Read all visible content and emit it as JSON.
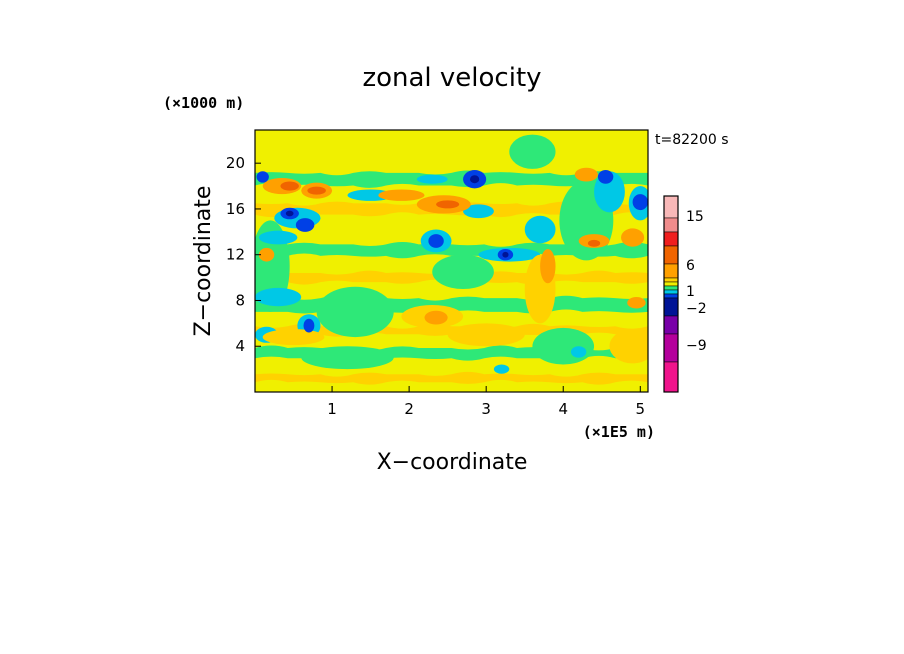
{
  "chart_data": {
    "type": "heatmap",
    "title": "zonal velocity",
    "xlabel": "X−coordinate",
    "ylabel": "Z−coordinate",
    "x_unit": "(×1E5 m)",
    "y_unit": "(×1000 m)",
    "time_label": "t=82200 s",
    "x_ticks": [
      "1",
      "2",
      "3",
      "4",
      "5"
    ],
    "y_ticks": [
      "4",
      "8",
      "12",
      "16",
      "20"
    ],
    "xlim": [
      0,
      5.1
    ],
    "ylim": [
      0,
      22.9
    ],
    "colorbar": {
      "tick_labels": [
        "15",
        "6",
        "1",
        "−2",
        "−9"
      ],
      "tick_values": [
        15,
        6,
        1,
        -2,
        -9
      ],
      "levels": [
        {
          "color": "#f0148c"
        },
        {
          "color": "#b4009c"
        },
        {
          "color": "#7800a8"
        },
        {
          "color": "#001496"
        },
        {
          "color": "#0040e6"
        },
        {
          "color": "#00c8e6"
        },
        {
          "color": "#2ee878"
        },
        {
          "color": "#f0f000"
        },
        {
          "color": "#ffd200"
        },
        {
          "color": "#ffa000"
        },
        {
          "color": "#f06400"
        },
        {
          "color": "#f01e1e"
        },
        {
          "color": "#f08c8c"
        },
        {
          "color": "#f8b8b8"
        }
      ]
    },
    "field_colors": {
      "background": "#f0f000",
      "weak_negative": "#2ee878",
      "moderate_negative": "#00c8e6",
      "strong_negative": "#0040e6",
      "very_strong_negative": "#001496",
      "weak_positive": "#ffd200",
      "moderate_positive": "#ffa000",
      "strong_positive": "#f06400"
    },
    "features": [
      {
        "kind": "band",
        "level": "weak_negative",
        "x": [
          0,
          5.1
        ],
        "z": 18.6,
        "thickness": 1.1
      },
      {
        "kind": "band",
        "level": "weak_negative",
        "x": [
          0,
          5.1
        ],
        "z": 12.4,
        "thickness": 1.0
      },
      {
        "kind": "band",
        "level": "weak_negative",
        "x": [
          0,
          5.1
        ],
        "z": 7.6,
        "thickness": 1.2
      },
      {
        "kind": "band",
        "level": "weak_negative",
        "x": [
          0,
          5.1
        ],
        "z": 3.4,
        "thickness": 0.9
      },
      {
        "kind": "band",
        "level": "weak_positive",
        "x": [
          0,
          5.1
        ],
        "z": 16.0,
        "thickness": 1.0
      },
      {
        "kind": "band",
        "level": "weak_positive",
        "x": [
          0,
          5.1
        ],
        "z": 10.0,
        "thickness": 0.8
      },
      {
        "kind": "band",
        "level": "weak_positive",
        "x": [
          0,
          5.1
        ],
        "z": 5.4,
        "thickness": 0.7
      },
      {
        "kind": "band",
        "level": "weak_positive",
        "x": [
          0,
          5.1
        ],
        "z": 1.2,
        "thickness": 0.7
      },
      {
        "kind": "blob",
        "level": "weak_negative",
        "x": 0.2,
        "z": 11.0,
        "rx": 0.25,
        "rz": 4.0
      },
      {
        "kind": "blob",
        "level": "weak_negative",
        "x": 1.3,
        "z": 7.0,
        "rx": 0.5,
        "rz": 2.2
      },
      {
        "kind": "blob",
        "level": "weak_negative",
        "x": 2.7,
        "z": 10.5,
        "rx": 0.4,
        "rz": 1.5
      },
      {
        "kind": "blob",
        "level": "weak_negative",
        "x": 4.3,
        "z": 15.0,
        "rx": 0.35,
        "rz": 3.5
      },
      {
        "kind": "blob",
        "level": "weak_negative",
        "x": 1.2,
        "z": 3.0,
        "rx": 0.6,
        "rz": 1.0
      },
      {
        "kind": "blob",
        "level": "weak_negative",
        "x": 4.0,
        "z": 4.0,
        "rx": 0.4,
        "rz": 1.6
      },
      {
        "kind": "blob",
        "level": "weak_negative",
        "x": 3.6,
        "z": 21.0,
        "rx": 0.3,
        "rz": 1.5
      },
      {
        "kind": "blob",
        "level": "moderate_negative",
        "x": 0.3,
        "z": 8.3,
        "rx": 0.3,
        "rz": 0.8
      },
      {
        "kind": "blob",
        "level": "moderate_negative",
        "x": 0.15,
        "z": 5.0,
        "rx": 0.15,
        "rz": 0.7
      },
      {
        "kind": "blob",
        "level": "moderate_negative",
        "x": 0.3,
        "z": 13.5,
        "rx": 0.25,
        "rz": 0.6
      },
      {
        "kind": "blob",
        "level": "moderate_negative",
        "x": 0.55,
        "z": 15.2,
        "rx": 0.3,
        "rz": 0.9
      },
      {
        "kind": "blob",
        "level": "moderate_negative",
        "x": 1.5,
        "z": 17.2,
        "rx": 0.3,
        "rz": 0.5
      },
      {
        "kind": "blob",
        "level": "moderate_negative",
        "x": 2.3,
        "z": 18.6,
        "rx": 0.2,
        "rz": 0.4
      },
      {
        "kind": "blob",
        "level": "moderate_negative",
        "x": 2.35,
        "z": 13.2,
        "rx": 0.2,
        "rz": 1.0
      },
      {
        "kind": "blob",
        "level": "moderate_negative",
        "x": 2.9,
        "z": 15.8,
        "rx": 0.2,
        "rz": 0.6
      },
      {
        "kind": "blob",
        "level": "moderate_negative",
        "x": 3.3,
        "z": 12.0,
        "rx": 0.4,
        "rz": 0.6
      },
      {
        "kind": "blob",
        "level": "moderate_negative",
        "x": 3.7,
        "z": 14.2,
        "rx": 0.2,
        "rz": 1.2
      },
      {
        "kind": "blob",
        "level": "moderate_negative",
        "x": 4.6,
        "z": 17.5,
        "rx": 0.2,
        "rz": 1.8
      },
      {
        "kind": "blob",
        "level": "moderate_negative",
        "x": 5.0,
        "z": 16.5,
        "rx": 0.15,
        "rz": 1.5
      },
      {
        "kind": "blob",
        "level": "moderate_negative",
        "x": 0.7,
        "z": 5.8,
        "rx": 0.15,
        "rz": 1.0
      },
      {
        "kind": "blob",
        "level": "moderate_negative",
        "x": 4.2,
        "z": 3.5,
        "rx": 0.1,
        "rz": 0.5
      },
      {
        "kind": "blob",
        "level": "moderate_negative",
        "x": 3.2,
        "z": 2.0,
        "rx": 0.1,
        "rz": 0.4
      },
      {
        "kind": "blob",
        "level": "weak_positive",
        "x": 2.3,
        "z": 6.6,
        "rx": 0.4,
        "rz": 1.0
      },
      {
        "kind": "blob",
        "level": "weak_positive",
        "x": 0.5,
        "z": 4.8,
        "rx": 0.4,
        "rz": 0.7
      },
      {
        "kind": "blob",
        "level": "weak_positive",
        "x": 3.0,
        "z": 5.0,
        "rx": 0.5,
        "rz": 1.0
      },
      {
        "kind": "blob",
        "level": "weak_positive",
        "x": 4.9,
        "z": 4.0,
        "rx": 0.3,
        "rz": 1.5
      },
      {
        "kind": "blob",
        "level": "weak_positive",
        "x": 3.7,
        "z": 9.0,
        "rx": 0.2,
        "rz": 3.0
      },
      {
        "kind": "blob",
        "level": "moderate_positive",
        "x": 0.35,
        "z": 18.0,
        "rx": 0.25,
        "rz": 0.7
      },
      {
        "kind": "blob",
        "level": "moderate_positive",
        "x": 0.8,
        "z": 17.6,
        "rx": 0.2,
        "rz": 0.7
      },
      {
        "kind": "blob",
        "level": "moderate_positive",
        "x": 1.9,
        "z": 17.2,
        "rx": 0.3,
        "rz": 0.5
      },
      {
        "kind": "blob",
        "level": "moderate_positive",
        "x": 2.45,
        "z": 16.4,
        "rx": 0.35,
        "rz": 0.8
      },
      {
        "kind": "blob",
        "level": "moderate_positive",
        "x": 2.35,
        "z": 6.5,
        "rx": 0.15,
        "rz": 0.6
      },
      {
        "kind": "blob",
        "level": "moderate_positive",
        "x": 0.15,
        "z": 12.0,
        "rx": 0.1,
        "rz": 0.6
      },
      {
        "kind": "blob",
        "level": "moderate_positive",
        "x": 3.8,
        "z": 11.0,
        "rx": 0.1,
        "rz": 1.5
      },
      {
        "kind": "blob",
        "level": "moderate_positive",
        "x": 4.4,
        "z": 13.2,
        "rx": 0.2,
        "rz": 0.6
      },
      {
        "kind": "blob",
        "level": "moderate_positive",
        "x": 4.9,
        "z": 13.5,
        "rx": 0.15,
        "rz": 0.8
      },
      {
        "kind": "blob",
        "level": "moderate_positive",
        "x": 4.3,
        "z": 19.0,
        "rx": 0.15,
        "rz": 0.6
      },
      {
        "kind": "blob",
        "level": "moderate_positive",
        "x": 4.95,
        "z": 7.8,
        "rx": 0.12,
        "rz": 0.5
      },
      {
        "kind": "blob",
        "level": "strong_positive",
        "x": 0.45,
        "z": 18.0,
        "rx": 0.12,
        "rz": 0.4
      },
      {
        "kind": "blob",
        "level": "strong_positive",
        "x": 0.8,
        "z": 17.6,
        "rx": 0.12,
        "rz": 0.35
      },
      {
        "kind": "blob",
        "level": "strong_positive",
        "x": 2.5,
        "z": 16.4,
        "rx": 0.15,
        "rz": 0.35
      },
      {
        "kind": "blob",
        "level": "strong_positive",
        "x": 4.4,
        "z": 13.0,
        "rx": 0.08,
        "rz": 0.3
      },
      {
        "kind": "blob",
        "level": "strong_negative",
        "x": 0.1,
        "z": 18.8,
        "rx": 0.08,
        "rz": 0.5
      },
      {
        "kind": "blob",
        "level": "strong_negative",
        "x": 0.45,
        "z": 15.6,
        "rx": 0.12,
        "rz": 0.5
      },
      {
        "kind": "blob",
        "level": "strong_negative",
        "x": 0.65,
        "z": 14.6,
        "rx": 0.12,
        "rz": 0.6
      },
      {
        "kind": "blob",
        "level": "strong_negative",
        "x": 2.35,
        "z": 13.2,
        "rx": 0.1,
        "rz": 0.6
      },
      {
        "kind": "blob",
        "level": "strong_negative",
        "x": 2.85,
        "z": 18.6,
        "rx": 0.15,
        "rz": 0.8
      },
      {
        "kind": "blob",
        "level": "strong_negative",
        "x": 3.25,
        "z": 12.0,
        "rx": 0.1,
        "rz": 0.5
      },
      {
        "kind": "blob",
        "level": "strong_negative",
        "x": 4.55,
        "z": 18.8,
        "rx": 0.1,
        "rz": 0.6
      },
      {
        "kind": "blob",
        "level": "strong_negative",
        "x": 5.0,
        "z": 16.6,
        "rx": 0.1,
        "rz": 0.7
      },
      {
        "kind": "blob",
        "level": "strong_negative",
        "x": 0.7,
        "z": 5.8,
        "rx": 0.07,
        "rz": 0.6
      },
      {
        "kind": "blob",
        "level": "very_strong_negative",
        "x": 0.45,
        "z": 15.6,
        "rx": 0.05,
        "rz": 0.25
      },
      {
        "kind": "blob",
        "level": "very_strong_negative",
        "x": 2.85,
        "z": 18.6,
        "rx": 0.06,
        "rz": 0.35
      },
      {
        "kind": "blob",
        "level": "very_strong_negative",
        "x": 3.25,
        "z": 12.0,
        "rx": 0.04,
        "rz": 0.25
      }
    ]
  }
}
